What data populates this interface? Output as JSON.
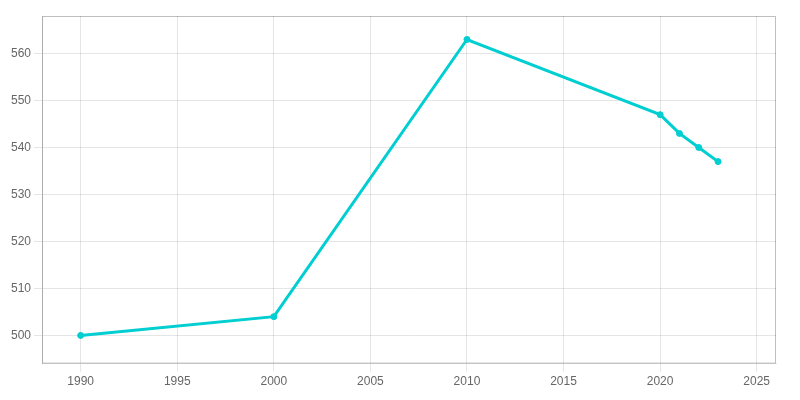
{
  "chart_data": {
    "type": "line",
    "x": [
      1990,
      2000,
      2010,
      2020,
      2021,
      2022,
      2023
    ],
    "values": [
      500,
      504,
      563,
      547,
      543,
      540,
      537
    ],
    "color": "#00CED1",
    "marker": "circle",
    "xlim": [
      1988,
      2026
    ],
    "ylim": [
      494,
      568
    ],
    "xticks": [
      1990,
      1995,
      2000,
      2005,
      2010,
      2015,
      2020,
      2025
    ],
    "yticks": [
      500,
      510,
      520,
      530,
      540,
      550,
      560
    ],
    "grid": true
  }
}
